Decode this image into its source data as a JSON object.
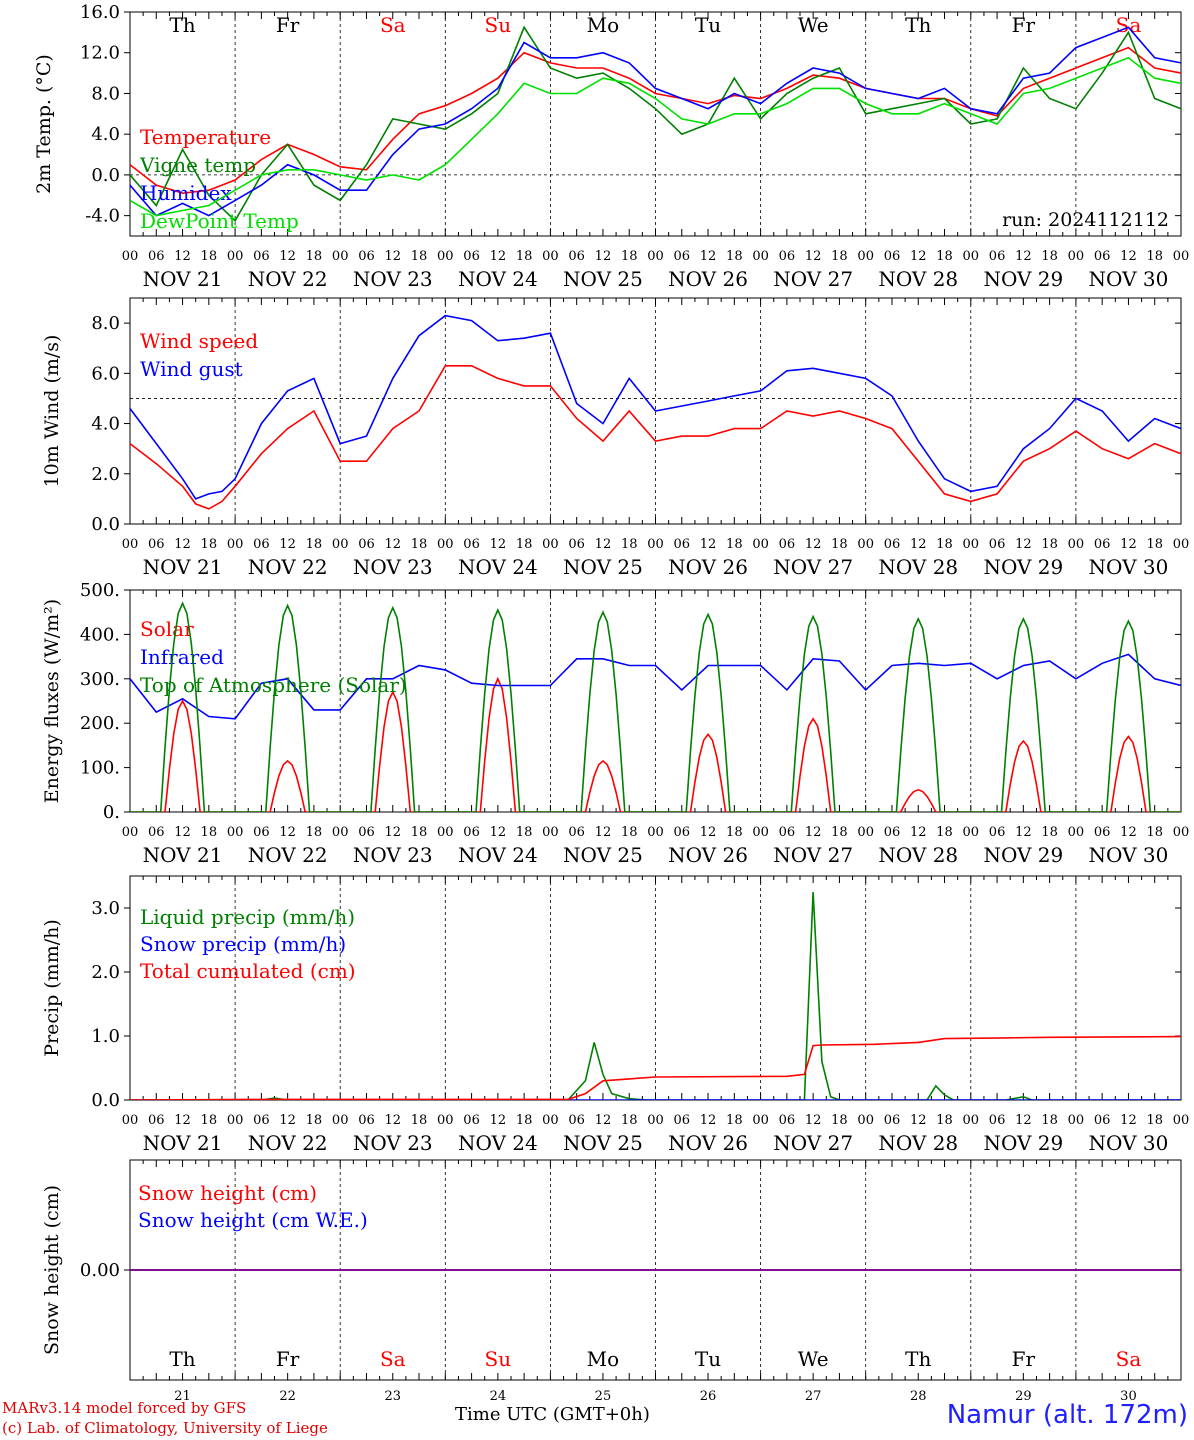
{
  "credits": [
    "MARv3.14 model forced by GFS",
    "(c) Lab. of Climatology, University of Liege"
  ],
  "station": "Namur (alt. 172m)",
  "time_axis_label": "Time UTC (GMT+0h)",
  "run_label": "run: 2024112112",
  "dates": [
    "NOV 21",
    "NOV 22",
    "NOV 23",
    "NOV 24",
    "NOV 25",
    "NOV 26",
    "NOV 27",
    "NOV 28",
    "NOV 29",
    "NOV 30"
  ],
  "weekdays": [
    "Th",
    "Fr",
    "Sa",
    "Su",
    "Mo",
    "Tu",
    "We",
    "Th",
    "Fr",
    "Sa"
  ],
  "weekend_flags": [
    false,
    false,
    true,
    true,
    false,
    false,
    false,
    false,
    false,
    true
  ],
  "day_numbers": [
    "21",
    "22",
    "23",
    "24",
    "25",
    "26",
    "27",
    "28",
    "29",
    "30"
  ],
  "hour_ticks": [
    "00",
    "06",
    "12",
    "18"
  ],
  "final_tick": "00",
  "colors": {
    "red": "#ff0000",
    "green": "#008000",
    "blue": "#0000ff",
    "lightgreen": "#00e000",
    "purple": "#800080"
  },
  "chart_data": [
    {
      "type": "line",
      "ylabel": "2m Temp. (°C)",
      "ylim": [
        -6.0,
        16.0
      ],
      "yticks": [
        -4.0,
        0.0,
        4.0,
        8.0,
        12.0,
        16.0
      ],
      "ytick_labels": [
        "-4.0",
        "0.0",
        "4.0",
        "8.0",
        "12.0",
        "16.0"
      ],
      "dashed_y": 0.0,
      "x_unit": "hours since NOV 21 00 UTC",
      "series": [
        {
          "name": "Temperature",
          "color": "red",
          "x": [
            0,
            6,
            12,
            18,
            24,
            30,
            36,
            42,
            48,
            54,
            60,
            66,
            72,
            78,
            84,
            90,
            96,
            102,
            108,
            114,
            120,
            126,
            132,
            138,
            144,
            150,
            156,
            162,
            168,
            174,
            180,
            186,
            192,
            198,
            204,
            210,
            216,
            222,
            228,
            234,
            240
          ],
          "values": [
            1.0,
            -1.0,
            -1.8,
            -1.5,
            -0.5,
            1.5,
            3.0,
            2.0,
            0.8,
            0.5,
            3.5,
            6.0,
            6.8,
            8.0,
            9.5,
            12.0,
            11.0,
            10.5,
            10.5,
            9.5,
            8.0,
            7.5,
            7.0,
            7.8,
            7.5,
            8.5,
            9.8,
            9.5,
            8.5,
            8.0,
            7.5,
            7.5,
            6.5,
            5.8,
            8.5,
            9.5,
            10.5,
            11.5,
            12.5,
            10.5,
            10.0
          ]
        },
        {
          "name": "Vigne temp",
          "color": "green",
          "x": [
            0,
            6,
            12,
            18,
            24,
            30,
            36,
            42,
            48,
            54,
            60,
            66,
            72,
            78,
            84,
            90,
            96,
            102,
            108,
            114,
            120,
            126,
            132,
            138,
            144,
            150,
            156,
            162,
            168,
            174,
            180,
            186,
            192,
            198,
            204,
            210,
            216,
            222,
            228,
            234,
            240
          ],
          "values": [
            0.0,
            -3.0,
            2.5,
            -2.0,
            -4.5,
            0.0,
            3.0,
            -1.0,
            -2.5,
            1.0,
            5.5,
            5.0,
            4.5,
            6.0,
            8.0,
            14.5,
            10.5,
            9.5,
            10.0,
            8.5,
            6.5,
            4.0,
            5.0,
            9.5,
            5.5,
            8.0,
            9.5,
            10.5,
            6.0,
            6.5,
            7.0,
            7.5,
            5.0,
            5.5,
            10.5,
            7.5,
            6.5,
            10.0,
            14.0,
            7.5,
            6.5
          ]
        },
        {
          "name": "Humidex",
          "color": "blue",
          "x": [
            0,
            6,
            12,
            18,
            24,
            30,
            36,
            42,
            48,
            54,
            60,
            66,
            72,
            78,
            84,
            90,
            96,
            102,
            108,
            114,
            120,
            126,
            132,
            138,
            144,
            150,
            156,
            162,
            168,
            174,
            180,
            186,
            192,
            198,
            204,
            210,
            216,
            222,
            228,
            234,
            240
          ],
          "values": [
            -1.0,
            -4.0,
            -2.8,
            -4.0,
            -2.5,
            -1.0,
            1.0,
            0.0,
            -1.5,
            -1.5,
            2.0,
            4.5,
            5.0,
            6.5,
            8.5,
            13.0,
            11.5,
            11.5,
            12.0,
            11.0,
            8.5,
            7.5,
            6.5,
            8.0,
            7.0,
            9.0,
            10.5,
            10.0,
            8.5,
            8.0,
            7.5,
            8.5,
            6.5,
            6.0,
            9.5,
            10.0,
            12.5,
            13.5,
            14.5,
            11.5,
            11.0
          ]
        },
        {
          "name": "DewPoint Temp",
          "color": "lightgreen",
          "x": [
            0,
            6,
            12,
            18,
            24,
            30,
            36,
            42,
            48,
            54,
            60,
            66,
            72,
            78,
            84,
            90,
            96,
            102,
            108,
            114,
            120,
            126,
            132,
            138,
            144,
            150,
            156,
            162,
            168,
            174,
            180,
            186,
            192,
            198,
            204,
            210,
            216,
            222,
            228,
            234,
            240
          ],
          "values": [
            -2.5,
            -4.0,
            -3.5,
            -3.0,
            -1.5,
            0.0,
            0.5,
            0.5,
            0.0,
            -0.5,
            0.0,
            -0.5,
            1.0,
            3.5,
            6.0,
            9.0,
            8.0,
            8.0,
            9.5,
            9.0,
            7.5,
            5.5,
            5.0,
            6.0,
            6.0,
            7.0,
            8.5,
            8.5,
            7.0,
            6.0,
            6.0,
            7.0,
            6.0,
            5.0,
            8.0,
            8.5,
            9.5,
            10.5,
            11.5,
            9.5,
            9.0
          ]
        }
      ]
    },
    {
      "type": "line",
      "ylabel": "10m Wind (m/s)",
      "ylim": [
        0.0,
        9.0
      ],
      "yticks": [
        0.0,
        2.0,
        4.0,
        6.0,
        8.0
      ],
      "ytick_labels": [
        "0.0",
        "2.0",
        "4.0",
        "6.0",
        "8.0"
      ],
      "dashed_y": 5.0,
      "series": [
        {
          "name": "Wind speed",
          "color": "red",
          "x": [
            0,
            6,
            12,
            15,
            18,
            21,
            24,
            30,
            36,
            42,
            48,
            54,
            60,
            66,
            72,
            78,
            84,
            90,
            96,
            102,
            108,
            114,
            120,
            126,
            132,
            138,
            144,
            150,
            156,
            162,
            168,
            174,
            180,
            186,
            192,
            198,
            204,
            210,
            216,
            222,
            228,
            234,
            240
          ],
          "values": [
            3.2,
            2.4,
            1.5,
            0.8,
            0.6,
            0.9,
            1.5,
            2.8,
            3.8,
            4.5,
            2.5,
            2.5,
            3.8,
            4.5,
            6.3,
            6.3,
            5.8,
            5.5,
            5.5,
            4.2,
            3.3,
            4.5,
            3.3,
            3.5,
            3.5,
            3.8,
            3.8,
            4.5,
            4.3,
            4.5,
            4.2,
            3.8,
            2.5,
            1.2,
            0.9,
            1.2,
            2.5,
            3.0,
            3.7,
            3.0,
            2.6,
            3.2,
            2.8
          ]
        },
        {
          "name": "Wind gust",
          "color": "blue",
          "x": [
            0,
            6,
            12,
            15,
            18,
            21,
            24,
            30,
            36,
            42,
            48,
            54,
            60,
            66,
            72,
            78,
            84,
            90,
            96,
            102,
            108,
            114,
            120,
            126,
            132,
            138,
            144,
            150,
            156,
            162,
            168,
            174,
            180,
            186,
            192,
            198,
            204,
            210,
            216,
            222,
            228,
            234,
            240
          ],
          "values": [
            4.6,
            3.2,
            1.8,
            1.0,
            1.2,
            1.3,
            1.8,
            4.0,
            5.3,
            5.8,
            3.2,
            3.5,
            5.8,
            7.5,
            8.3,
            8.1,
            7.3,
            7.4,
            7.6,
            4.8,
            4.0,
            5.8,
            4.5,
            4.7,
            4.9,
            5.1,
            5.3,
            6.1,
            6.2,
            6.0,
            5.8,
            5.1,
            3.3,
            1.8,
            1.3,
            1.5,
            3.0,
            3.8,
            5.0,
            4.5,
            3.3,
            4.2,
            3.8
          ]
        }
      ]
    },
    {
      "type": "line",
      "ylabel": "Energy fluxes (W/m²)",
      "ylim": [
        0,
        500
      ],
      "yticks": [
        0,
        100,
        200,
        300,
        400,
        500
      ],
      "ytick_labels": [
        "0.",
        "100.",
        "200.",
        "300.",
        "400.",
        "500."
      ],
      "series": [
        {
          "name": "Solar",
          "color": "red",
          "peaks": [
            [
              12,
              250
            ],
            [
              36,
              115
            ],
            [
              60,
              270
            ],
            [
              84,
              300
            ],
            [
              108,
              115
            ],
            [
              132,
              175
            ],
            [
              156,
              210
            ],
            [
              180,
              50
            ],
            [
              204,
              160
            ],
            [
              228,
              170
            ]
          ]
        },
        {
          "name": "Infrared",
          "color": "blue",
          "x": [
            0,
            6,
            12,
            18,
            24,
            30,
            36,
            42,
            48,
            54,
            60,
            66,
            72,
            78,
            84,
            90,
            96,
            102,
            108,
            114,
            120,
            126,
            132,
            138,
            144,
            150,
            156,
            162,
            168,
            174,
            180,
            186,
            192,
            198,
            204,
            210,
            216,
            222,
            228,
            234,
            240
          ],
          "values": [
            300,
            225,
            255,
            215,
            210,
            290,
            300,
            230,
            230,
            300,
            300,
            330,
            320,
            290,
            285,
            285,
            285,
            345,
            345,
            330,
            330,
            275,
            330,
            330,
            330,
            275,
            345,
            340,
            275,
            330,
            335,
            330,
            335,
            300,
            330,
            340,
            300,
            335,
            355,
            300,
            285
          ]
        },
        {
          "name": "Top of Atmosphere (Solar)",
          "color": "green",
          "peaks": [
            [
              12,
              470
            ],
            [
              36,
              465
            ],
            [
              60,
              460
            ],
            [
              84,
              455
            ],
            [
              108,
              450
            ],
            [
              132,
              445
            ],
            [
              156,
              440
            ],
            [
              180,
              435
            ],
            [
              204,
              435
            ],
            [
              228,
              430
            ]
          ]
        }
      ]
    },
    {
      "type": "line",
      "ylabel": "Precip (mm/h)",
      "ylim": [
        0.0,
        3.5
      ],
      "yticks": [
        0.0,
        1.0,
        2.0,
        3.0
      ],
      "ytick_labels": [
        "0.0",
        "1.0",
        "2.0",
        "3.0"
      ],
      "series": [
        {
          "name": "Liquid precip (mm/h)",
          "color": "green",
          "x": [
            0,
            30,
            33,
            36,
            100,
            104,
            106,
            108,
            110,
            114,
            118,
            154,
            156,
            158,
            160,
            162,
            182,
            184,
            186,
            188,
            200,
            204,
            206,
            240
          ],
          "values": [
            0,
            0,
            0.03,
            0,
            0,
            0.3,
            0.9,
            0.4,
            0.1,
            0.02,
            0,
            0,
            3.25,
            0.6,
            0.05,
            0,
            0,
            0.22,
            0.08,
            0,
            0,
            0.05,
            0,
            0
          ]
        },
        {
          "name": "Snow precip (mm/h)",
          "color": "blue",
          "x": [
            0,
            240
          ],
          "values": [
            0,
            0
          ]
        },
        {
          "name": "Total cumulated (cm)",
          "color": "red",
          "x": [
            0,
            30,
            100,
            104,
            108,
            114,
            120,
            150,
            154,
            156,
            158,
            170,
            180,
            186,
            200,
            210,
            240
          ],
          "values": [
            0,
            0.01,
            0.01,
            0.1,
            0.3,
            0.33,
            0.36,
            0.37,
            0.4,
            0.85,
            0.86,
            0.87,
            0.9,
            0.96,
            0.97,
            0.98,
            0.99
          ]
        }
      ]
    },
    {
      "type": "line",
      "ylabel": "Snow height (cm)",
      "ylim": [
        -0.5,
        0.5
      ],
      "yticks": [
        0.0
      ],
      "ytick_labels": [
        "0.00"
      ],
      "series": [
        {
          "name": "Snow height (cm)",
          "color": "red",
          "x": [
            0,
            240
          ],
          "values": [
            0,
            0
          ]
        },
        {
          "name": "Snow height (cm W.E.)",
          "color": "blue",
          "x": [
            0,
            240
          ],
          "values": [
            0,
            0
          ]
        }
      ]
    }
  ]
}
